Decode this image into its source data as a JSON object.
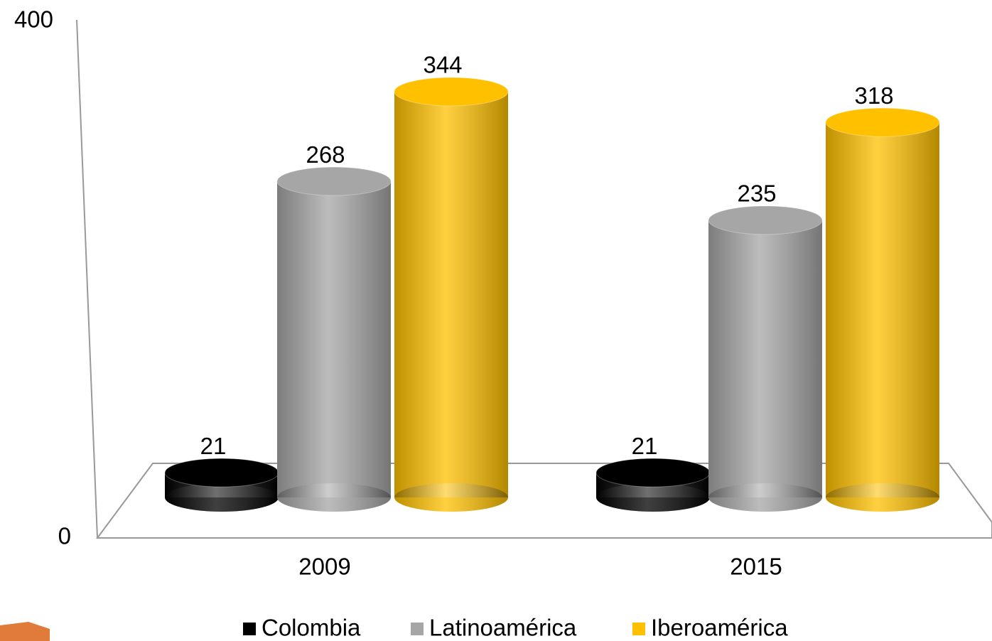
{
  "chart_data": {
    "type": "bar",
    "categories": [
      "2009",
      "2015"
    ],
    "series": [
      {
        "name": "Colombia",
        "color": "#000000",
        "values": [
          21,
          21
        ]
      },
      {
        "name": "Latinoamérica",
        "color": "#a6a6a6",
        "values": [
          268,
          235
        ]
      },
      {
        "name": "Iberoamérica",
        "color": "#ffc000",
        "values": [
          344,
          318
        ]
      }
    ],
    "ylim": [
      0,
      400
    ],
    "yticks": [
      0,
      400
    ]
  }
}
